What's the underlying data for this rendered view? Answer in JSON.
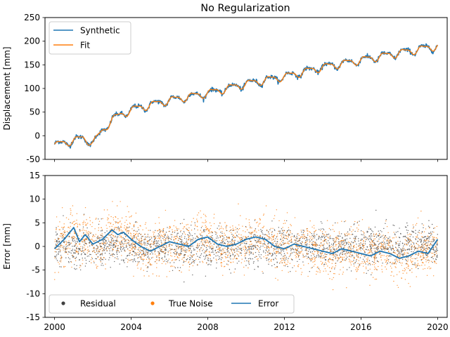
{
  "chart_data": [
    {
      "type": "line",
      "title": "No Regularization",
      "xlabel": "",
      "ylabel": "Displacement [mm]",
      "xlim": [
        1999.5,
        2020.5
      ],
      "ylim": [
        -50,
        250
      ],
      "xticks": [
        2000,
        2004,
        2008,
        2012,
        2016,
        2020
      ],
      "xtick_labels_visible": false,
      "yticks": [
        -50,
        0,
        50,
        100,
        150,
        200,
        250
      ],
      "grid": false,
      "legend": {
        "placement": "top-left",
        "entries": [
          "Synthetic",
          "Fit"
        ]
      },
      "trend_knots": {
        "x": [
          2000.0,
          2001.5,
          2002.0,
          2003.0,
          2004.0,
          2006.0,
          2008.0,
          2010.0,
          2012.0,
          2014.0,
          2016.0,
          2018.0,
          2020.0
        ],
        "y": [
          -20,
          -5,
          -15,
          35,
          55,
          75,
          90,
          110,
          125,
          145,
          160,
          175,
          190
        ]
      },
      "seasonal_amplitude": 7,
      "series": [
        {
          "name": "Synthetic",
          "color": "#1f77b4",
          "noise": true
        },
        {
          "name": "Fit",
          "color": "#ff7f0e",
          "noise": false
        }
      ]
    },
    {
      "type": "scatter",
      "title": "",
      "xlabel": "",
      "ylabel": "Error [mm]",
      "xlim": [
        1999.5,
        2020.5
      ],
      "ylim": [
        -15,
        15
      ],
      "xticks": [
        2000,
        2004,
        2008,
        2012,
        2016,
        2020
      ],
      "yticks": [
        -15,
        -10,
        -5,
        0,
        5,
        10,
        15
      ],
      "grid": false,
      "legend": {
        "placement": "bottom-left",
        "entries": [
          "Residual",
          "True Noise",
          "Error"
        ]
      },
      "series": [
        {
          "name": "Residual",
          "kind": "scatter",
          "color": "#404040",
          "spread": 2.0
        },
        {
          "name": "True Noise",
          "kind": "scatter",
          "color": "#ff7f0e",
          "spread": 2.6
        },
        {
          "name": "Error",
          "kind": "line",
          "color": "#1f77b4",
          "x": [
            2000.0,
            2000.5,
            2001.0,
            2001.3,
            2001.6,
            2002.0,
            2002.5,
            2003.0,
            2003.3,
            2003.6,
            2004.0,
            2004.5,
            2005.0,
            2005.5,
            2006.0,
            2006.5,
            2007.0,
            2007.5,
            2008.0,
            2008.5,
            2009.0,
            2009.5,
            2010.0,
            2010.5,
            2011.0,
            2011.5,
            2012.0,
            2012.5,
            2013.0,
            2013.5,
            2014.0,
            2014.5,
            2015.0,
            2015.5,
            2016.0,
            2016.5,
            2017.0,
            2017.5,
            2018.0,
            2018.5,
            2019.0,
            2019.5,
            2020.0
          ],
          "y": [
            -0.5,
            1.5,
            4.0,
            1.0,
            2.5,
            0.5,
            1.5,
            3.5,
            2.5,
            3.0,
            1.5,
            0.0,
            -1.0,
            0.0,
            1.0,
            0.5,
            0.0,
            1.5,
            2.0,
            0.5,
            0.0,
            0.5,
            1.5,
            2.0,
            1.5,
            0.0,
            -0.5,
            0.5,
            0.0,
            -0.5,
            -1.0,
            -1.5,
            -0.5,
            -1.0,
            -1.5,
            -2.0,
            -1.0,
            -1.5,
            -2.5,
            -2.0,
            -1.0,
            -1.5,
            1.5
          ]
        }
      ]
    }
  ]
}
